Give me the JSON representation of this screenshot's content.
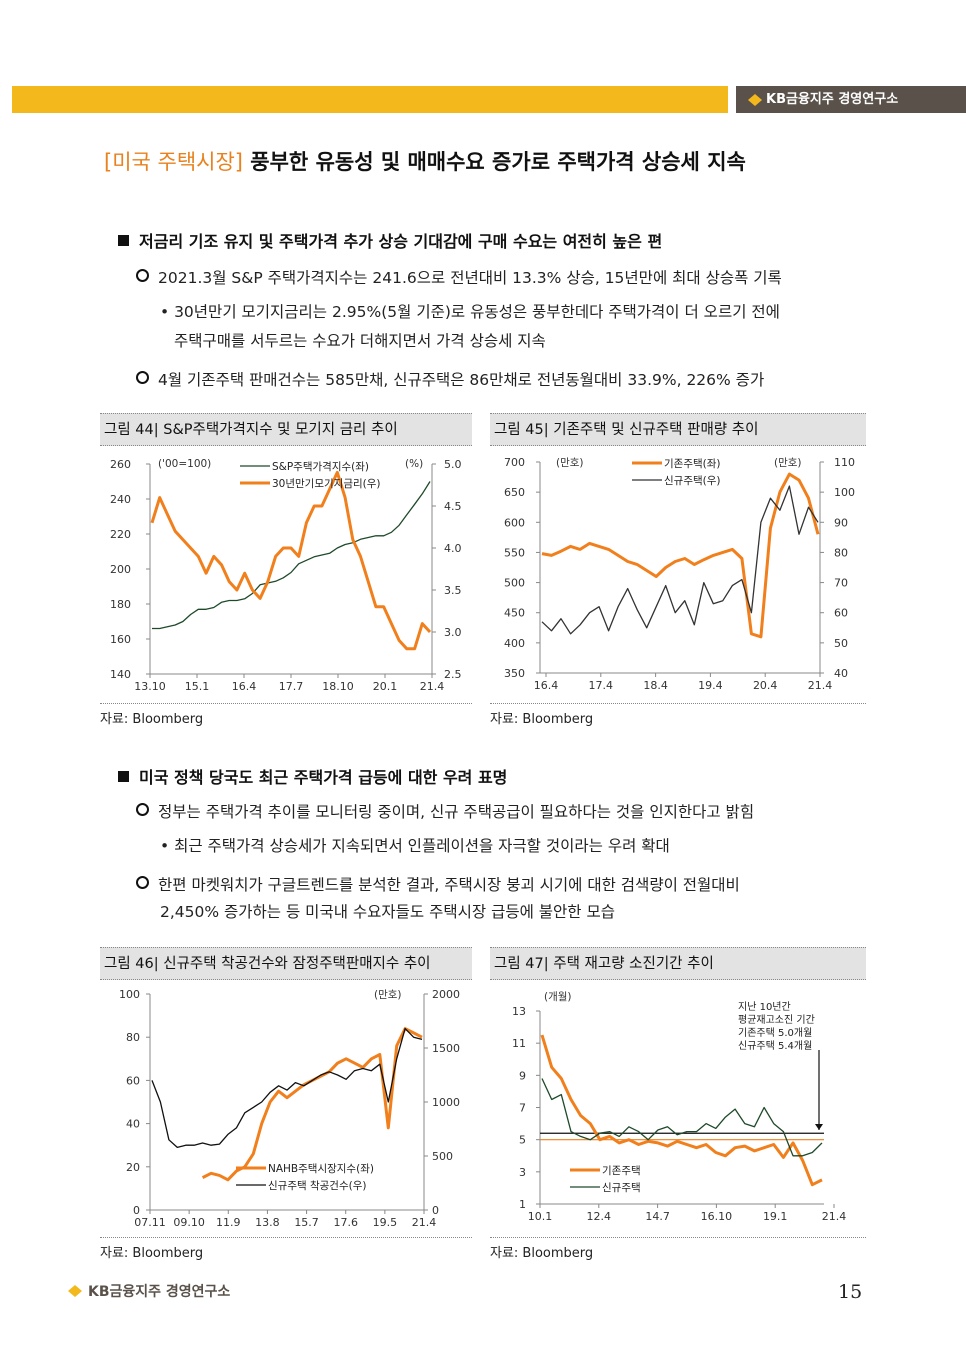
{
  "header": {
    "brand": "KB금융지주 경영연구소"
  },
  "title": {
    "tag": "[미국 주택시장]",
    "text": "풍부한 유동성 및 매매수요 증가로 주택가격 상승세 지속"
  },
  "section1": {
    "heading": "저금리 기조 유지 및 주택가격 추가 상승 기대감에 구매 수요는 여전히 높은 편",
    "b1": "2021.3월 S&P 주택가격지수는 241.6으로 전년대비 13.3% 상승, 15년만에 최대 상승폭 기록",
    "b1_sub_line1": "• 30년만기 모기지금리는 2.95%(5월 기준)로 유동성은 풍부한데다 주택가격이 더 오르기 전에",
    "b1_sub_line2": "주택구매를 서두르는 수요가 더해지면서 가격 상승세 지속",
    "b2": "4월 기존주택 판매건수는 585만채, 신규주택은 86만채로 전년동월대비 33.9%, 226% 증가"
  },
  "section2": {
    "heading": "미국 정책 당국도 최근 주택가격 급등에 대한 우려 표명",
    "b1": "정부는 주택가격 추이를 모니터링 중이며, 신규 주택공급이 필요하다는 것을 인지한다고 밝힘",
    "b1_sub": "• 최근 주택가격 상승세가 지속되면서 인플레이션을 자극할 것이라는 우려 확대",
    "b2_line1": "한편 마켓워치가 구글트렌드를 분석한 결과, 주택시장 붕괴 시기에 대한 검색량이 전월대비",
    "b2_line2": "2,450% 증가하는 등 미국내 수요자들도 주택시장 급등에 불안한 모습"
  },
  "source_text": "자료: Bloomberg",
  "footer": {
    "brand": "KB금융지주 경영연구소",
    "page": "15"
  },
  "colors": {
    "orange": "#f07f1c",
    "green": "#1e4a2a",
    "dark": "#333333",
    "header_bg": "#e3e3e3",
    "accent_bar": "#f3b81b"
  },
  "chart_data": [
    {
      "type": "line",
      "title": "그림 44| S&P주택가격지수 및 모기지 금리 추이",
      "unit_left": "('00=100)",
      "unit_right": "(%)",
      "y_left": {
        "ticks": [
          "260",
          "240",
          "220",
          "200",
          "180",
          "160",
          "140"
        ],
        "range": [
          140,
          260
        ]
      },
      "y_right": {
        "ticks": [
          "5.0",
          "4.5",
          "4.0",
          "3.5",
          "3.0",
          "2.5"
        ],
        "range": [
          2.5,
          5.0
        ]
      },
      "x_ticks": [
        "13.10",
        "15.1",
        "16.4",
        "17.7",
        "18.10",
        "20.1",
        "21.4"
      ],
      "series": [
        {
          "name": "S&P주택가격지수(좌)",
          "axis": "left",
          "color": "#1e4a2a",
          "values": [
            166,
            166,
            167,
            168,
            170,
            174,
            177,
            177,
            178,
            181,
            182,
            182,
            183,
            186,
            191,
            192,
            193,
            195,
            198,
            203,
            205,
            207,
            208,
            209,
            212,
            214,
            215,
            217,
            218,
            219,
            219,
            221,
            225,
            231,
            237,
            243,
            250
          ]
        },
        {
          "name": "30년만기모기지금리(우)",
          "axis": "right",
          "color": "#f07f1c",
          "values": [
            4.3,
            4.6,
            4.4,
            4.2,
            4.1,
            4.0,
            3.9,
            3.7,
            3.9,
            3.8,
            3.6,
            3.5,
            3.7,
            3.5,
            3.4,
            3.6,
            3.9,
            4.0,
            4.0,
            3.9,
            4.3,
            4.5,
            4.5,
            4.7,
            4.9,
            4.6,
            4.1,
            3.9,
            3.6,
            3.3,
            3.3,
            3.1,
            2.9,
            2.8,
            2.8,
            3.1,
            3.0
          ]
        }
      ]
    },
    {
      "type": "line",
      "title": "그림 45| 기존주택 및 신규주택 판매량 추이",
      "unit_left": "(만호)",
      "unit_right": "(만호)",
      "y_left": {
        "ticks": [
          "700",
          "650",
          "600",
          "550",
          "500",
          "450",
          "400",
          "350"
        ],
        "range": [
          350,
          700
        ]
      },
      "y_right": {
        "ticks": [
          "110",
          "100",
          "90",
          "80",
          "70",
          "60",
          "50",
          "40"
        ],
        "range": [
          40,
          110
        ]
      },
      "x_ticks": [
        "16.4",
        "17.4",
        "18.4",
        "19.4",
        "20.4",
        "21.4"
      ],
      "series": [
        {
          "name": "기존주택(좌)",
          "axis": "left",
          "color": "#f07f1c",
          "values": [
            548,
            545,
            552,
            560,
            555,
            565,
            560,
            555,
            545,
            535,
            530,
            520,
            510,
            525,
            535,
            540,
            530,
            538,
            545,
            550,
            555,
            540,
            415,
            410,
            590,
            650,
            680,
            670,
            640,
            580
          ]
        },
        {
          "name": "신규주택(우)",
          "axis": "right",
          "color": "#333333",
          "values": [
            57,
            54,
            58,
            53,
            56,
            60,
            62,
            54,
            62,
            68,
            61,
            55,
            62,
            69,
            60,
            64,
            56,
            70,
            63,
            64,
            69,
            71,
            60,
            90,
            98,
            94,
            102,
            86,
            95,
            90
          ]
        }
      ]
    },
    {
      "type": "line",
      "title": "그림 46| 신규주택 착공건수와 잠정주택판매지수 추이",
      "unit_right": "(만호)",
      "y_left": {
        "ticks": [
          "100",
          "80",
          "60",
          "40",
          "20",
          "0"
        ],
        "range": [
          0,
          100
        ]
      },
      "y_right": {
        "ticks": [
          "2000",
          "1500",
          "1000",
          "500",
          "0"
        ],
        "range": [
          0,
          2000
        ]
      },
      "x_ticks": [
        "07.11",
        "09.10",
        "11.9",
        "13.8",
        "15.7",
        "17.6",
        "19.5",
        "21.4"
      ],
      "series": [
        {
          "name": "NAHB주택시장지수(좌)",
          "axis": "left",
          "color": "#f07f1c",
          "values": [
            null,
            null,
            null,
            null,
            null,
            null,
            15,
            17,
            16,
            14,
            18,
            20,
            26,
            40,
            50,
            55,
            52,
            55,
            58,
            60,
            62,
            64,
            68,
            70,
            68,
            66,
            70,
            72,
            38,
            76,
            84,
            82,
            80
          ]
        },
        {
          "name": "신규주택 착공건수(우)",
          "axis": "right",
          "color": "#111111",
          "values": [
            1200,
            1000,
            650,
            580,
            600,
            600,
            620,
            600,
            610,
            700,
            760,
            900,
            950,
            1000,
            1090,
            1150,
            1110,
            1180,
            1150,
            1200,
            1250,
            1280,
            1250,
            1210,
            1290,
            1310,
            1290,
            1350,
            1000,
            1400,
            1680,
            1600,
            1580
          ]
        }
      ]
    },
    {
      "type": "line",
      "title": "그림 47| 주택 재고량 소진기간 추이",
      "unit_left": "(개월)",
      "annotation": [
        "지난 10년간",
        "평균재고소진 기간",
        "기존주택 5.0개월",
        "신규주택 5.4개월"
      ],
      "y_left": {
        "ticks": [
          "13",
          "11",
          "9",
          "7",
          "5",
          "3",
          "1"
        ],
        "range": [
          1,
          13
        ]
      },
      "x_ticks": [
        "10.1",
        "12.4",
        "14.7",
        "16.10",
        "19.1",
        "21.4"
      ],
      "reference_lines": [
        {
          "value": 5.0,
          "color": "#f07f1c"
        },
        {
          "value": 5.4,
          "color": "#111111"
        }
      ],
      "series": [
        {
          "name": "기존주택",
          "color": "#f07f1c",
          "values": [
            11.5,
            9.5,
            8.8,
            7.5,
            6.5,
            6.0,
            5.0,
            5.2,
            4.8,
            5.0,
            4.7,
            4.9,
            4.8,
            4.6,
            4.9,
            4.7,
            4.5,
            4.7,
            4.2,
            4.0,
            4.5,
            4.6,
            4.3,
            4.5,
            4.7,
            3.9,
            4.8,
            3.7,
            2.2,
            2.5
          ]
        },
        {
          "name": "신규주택",
          "color": "#1e4a2a",
          "values": [
            8.8,
            7.5,
            7.8,
            5.5,
            5.2,
            5.0,
            5.4,
            5.5,
            5.2,
            5.8,
            5.5,
            5.0,
            5.6,
            5.8,
            5.3,
            5.5,
            5.5,
            6.0,
            5.7,
            6.4,
            6.9,
            6.0,
            5.8,
            7.0,
            6.0,
            5.5,
            4.0,
            4.0,
            4.2,
            4.8
          ]
        }
      ]
    }
  ]
}
